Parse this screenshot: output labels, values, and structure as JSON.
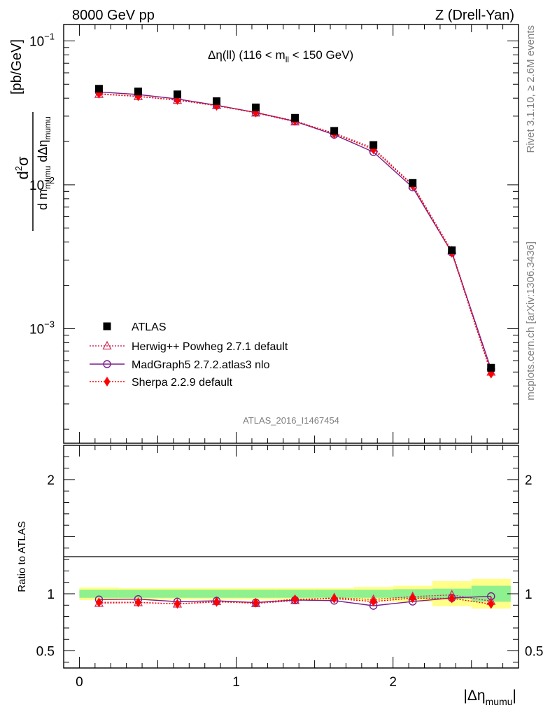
{
  "header": {
    "energy_label": "8000 GeV pp",
    "process_label": "Z (Drell-Yan)"
  },
  "side_labels": {
    "rivet": "Rivet 3.1.10, ≥ 2.6M events",
    "mcplots": "mcplots.cern.ch [arXiv:1306.3436]"
  },
  "chart_data": [
    {
      "type": "scatter",
      "panel": "main",
      "title": "Δη(ll) (116 < m_ll < 150 GeV)",
      "title_parts": {
        "prefix": "Δη(ll) (116 < m",
        "sub": "ll",
        "suffix": " < 150 GeV)"
      },
      "watermark": "ATLAS_2016_I1467454",
      "ylabel": "d²σ / d m_mumu dΔη_mumu [pb/GeV]",
      "ylabel_parts": {
        "num_d": "d",
        "num_sup": "2",
        "num_sigma": "σ",
        "den_d1": "d m",
        "den_sub1": "mumu",
        "den_d2": " dΔη",
        "den_sub2": "mumu",
        "unit": "[pb/GeV]"
      },
      "xlim": [
        -0.1,
        2.8
      ],
      "ylim": [
        0.00016,
        0.13
      ],
      "log_y": true,
      "y_ticks": [
        {
          "value": 0.1,
          "base": "10",
          "exp": "−1"
        },
        {
          "value": 0.01,
          "base": "10",
          "exp": "−2"
        },
        {
          "value": 0.001,
          "base": "10",
          "exp": "−3"
        }
      ],
      "legend_position": "bottom-left",
      "x": [
        0.125,
        0.375,
        0.625,
        0.875,
        1.125,
        1.375,
        1.625,
        1.875,
        2.125,
        2.375,
        2.625
      ],
      "series": [
        {
          "name": "ATLAS",
          "style": "data",
          "color": "#000000",
          "marker": "square",
          "values": [
            0.0465,
            0.0445,
            0.0425,
            0.0381,
            0.0345,
            0.0292,
            0.0237,
            0.0189,
            0.0103,
            0.00351,
            0.000535
          ]
        },
        {
          "name": "Herwig++ Powheg 2.7.1 default",
          "style": "dotted",
          "color": "#d0305a",
          "marker": "triangle-open",
          "values": [
            0.0426,
            0.0411,
            0.0387,
            0.0356,
            0.0316,
            0.0274,
            0.0229,
            0.018,
            0.01,
            0.00348,
            0.0005
          ]
        },
        {
          "name": "MadGraph5 2.7.2.atlas3 nlo",
          "style": "solid",
          "color": "#7b1f8a",
          "marker": "circle-open",
          "values": [
            0.0442,
            0.0424,
            0.0395,
            0.0357,
            0.0318,
            0.0276,
            0.0223,
            0.0169,
            0.0096,
            0.00338,
            0.000523
          ]
        },
        {
          "name": "Sherpa 2.2.9 default",
          "style": "dotted",
          "color": "#ff0000",
          "marker": "diamond",
          "values": [
            0.043,
            0.0412,
            0.0388,
            0.0354,
            0.0318,
            0.0278,
            0.0227,
            0.0176,
            0.0099,
            0.00337,
            0.000487
          ]
        }
      ]
    },
    {
      "type": "line",
      "panel": "ratio",
      "ylabel": "Ratio to ATLAS",
      "xlabel": "|Δη_mumu|",
      "xlabel_parts": {
        "prefix": "|Δη",
        "sub": "mumu",
        "suffix": "|"
      },
      "xlim": [
        -0.1,
        2.8
      ],
      "ylim": [
        0.35,
        2.3
      ],
      "x_ticks": [
        {
          "value": 0,
          "label": "0"
        },
        {
          "value": 1,
          "label": "1"
        },
        {
          "value": 2,
          "label": "2"
        }
      ],
      "y_ticks": [
        {
          "value": 0.5,
          "label": "0.5"
        },
        {
          "value": 1,
          "label": "1"
        },
        {
          "value": 2,
          "label": "2"
        }
      ],
      "bin_edges": [
        0,
        0.25,
        0.5,
        0.75,
        1.0,
        1.25,
        1.5,
        1.75,
        2.0,
        2.25,
        2.5,
        2.75
      ],
      "band_inner": [
        0.035,
        0.035,
        0.035,
        0.035,
        0.035,
        0.035,
        0.035,
        0.035,
        0.04,
        0.045,
        0.07
      ],
      "band_outer": [
        0.055,
        0.05,
        0.05,
        0.05,
        0.05,
        0.05,
        0.05,
        0.06,
        0.07,
        0.11,
        0.13
      ],
      "band_colors": {
        "inner": "#8ef08e",
        "outer": "#ffff88"
      },
      "x": [
        0.125,
        0.375,
        0.625,
        0.875,
        1.125,
        1.375,
        1.625,
        1.875,
        2.125,
        2.375,
        2.625
      ],
      "series": [
        {
          "name": "Herwig++ Powheg 2.7.1 default",
          "style": "dotted",
          "color": "#d0305a",
          "marker": "triangle-open",
          "values": [
            0.917,
            0.923,
            0.911,
            0.933,
            0.915,
            0.94,
            0.965,
            0.95,
            0.975,
            0.99,
            0.935
          ]
        },
        {
          "name": "MadGraph5 2.7.2.atlas3 nlo",
          "style": "solid",
          "color": "#7b1f8a",
          "marker": "circle-open",
          "values": [
            0.95,
            0.953,
            0.931,
            0.938,
            0.923,
            0.945,
            0.94,
            0.895,
            0.932,
            0.963,
            0.978
          ]
        },
        {
          "name": "Sherpa 2.2.9 default",
          "style": "dotted",
          "color": "#ff0000",
          "marker": "diamond",
          "values": [
            0.925,
            0.925,
            0.912,
            0.928,
            0.922,
            0.952,
            0.958,
            0.932,
            0.962,
            0.96,
            0.91
          ]
        }
      ]
    }
  ]
}
